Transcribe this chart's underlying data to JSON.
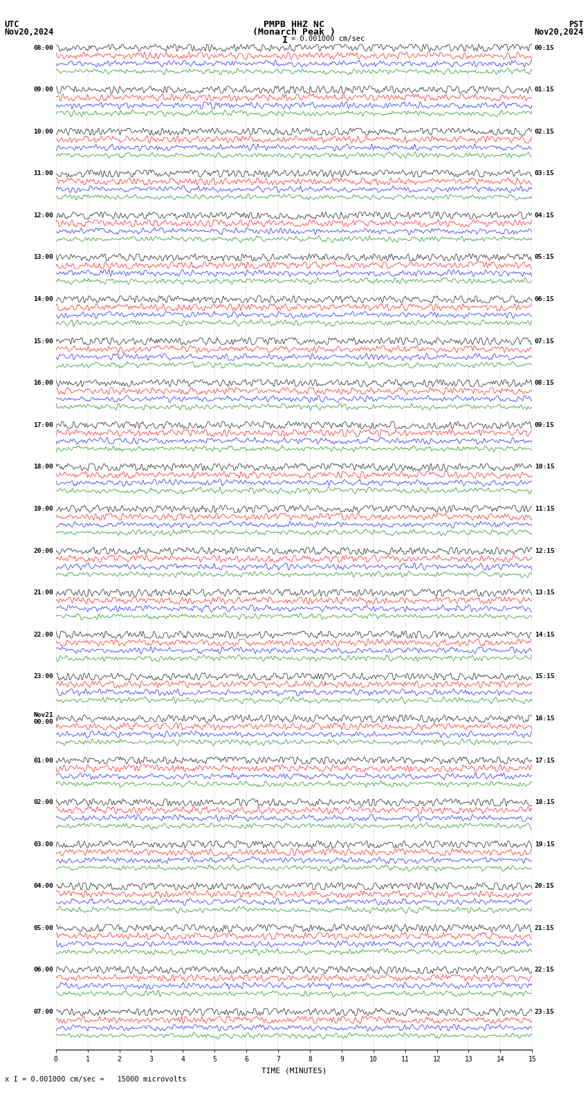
{
  "title_line1": "PMPB HHZ NC",
  "title_line2": "(Monarch Peak )",
  "scale_label": "I = 0.001000 cm/sec",
  "utc_label": "UTC",
  "utc_date": "Nov20,2024",
  "pst_label": "PST",
  "pst_date": "Nov20,2024",
  "bottom_label": "x I = 0.001000 cm/sec =   15000 microvolts",
  "xlabel": "TIME (MINUTES)",
  "bg_color": "#ffffff",
  "trace_colors": [
    "#000000",
    "#ff0000",
    "#0000ff",
    "#008000"
  ],
  "fig_width": 8.5,
  "fig_height": 15.84,
  "dpi": 100,
  "num_rows": 24,
  "traces_per_row": 4,
  "minutes": 15,
  "samples_per_minute": 100,
  "noise_scale": [
    0.12,
    0.1,
    0.08,
    0.07
  ],
  "left_time_labels": [
    "08:00",
    "09:00",
    "10:00",
    "11:00",
    "12:00",
    "13:00",
    "14:00",
    "15:00",
    "16:00",
    "17:00",
    "18:00",
    "19:00",
    "20:00",
    "21:00",
    "22:00",
    "23:00",
    "Nov21\n00:00",
    "01:00",
    "02:00",
    "03:00",
    "04:00",
    "05:00",
    "06:00",
    "07:00"
  ],
  "right_time_labels": [
    "00:15",
    "01:15",
    "02:15",
    "03:15",
    "04:15",
    "05:15",
    "06:15",
    "07:15",
    "08:15",
    "09:15",
    "10:15",
    "11:15",
    "12:15",
    "13:15",
    "14:15",
    "15:15",
    "16:15",
    "17:15",
    "18:15",
    "19:15",
    "20:15",
    "21:15",
    "22:15",
    "23:15"
  ]
}
